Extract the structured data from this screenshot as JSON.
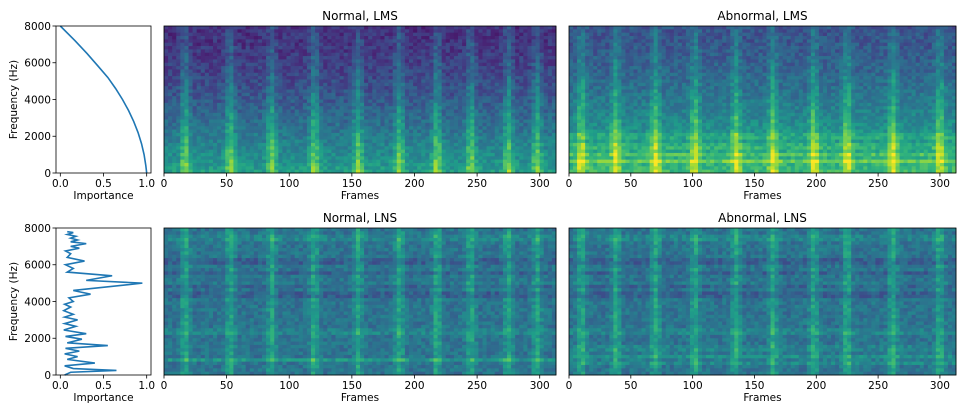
{
  "figure": {
    "colormap": "viridis",
    "line_color": "#1f77b4",
    "viridis_stops": [
      "#440154",
      "#482878",
      "#3e4989",
      "#31688e",
      "#26828e",
      "#1f9e89",
      "#35b779",
      "#6ece58",
      "#b5de2b",
      "#fde725"
    ]
  },
  "chart_data": [
    {
      "id": "importance-lms",
      "type": "line",
      "title": "",
      "xlabel": "Importance",
      "ylabel": "Frequency (Hz)",
      "xlim": [
        -0.05,
        1.05
      ],
      "ylim": [
        0,
        8000
      ],
      "xticks": [
        0.0,
        0.5,
        1.0
      ],
      "xtick_labels": [
        "0.0",
        "0.5",
        "1.0"
      ],
      "yticks": [
        0,
        2000,
        4000,
        6000,
        8000
      ],
      "ytick_labels": [
        "0",
        "2000",
        "4000",
        "6000",
        "8000"
      ],
      "series": [
        {
          "name": "importance",
          "x": [
            1.0,
            0.99,
            0.97,
            0.94,
            0.9,
            0.85,
            0.79,
            0.72,
            0.64,
            0.55,
            0.44,
            0.31,
            0.17,
            0.0
          ],
          "y": [
            0,
            400,
            1000,
            1600,
            2200,
            2800,
            3400,
            4000,
            4600,
            5200,
            5800,
            6500,
            7200,
            8000
          ]
        }
      ]
    },
    {
      "id": "importance-lns",
      "type": "line",
      "title": "",
      "xlabel": "Importance",
      "ylabel": "Frequency (Hz)",
      "xlim": [
        -0.05,
        1.05
      ],
      "ylim": [
        0,
        8000
      ],
      "xticks": [
        0.0,
        0.5,
        1.0
      ],
      "xtick_labels": [
        "0.0",
        "0.5",
        "1.0"
      ],
      "yticks": [
        0,
        2000,
        4000,
        6000,
        8000
      ],
      "ytick_labels": [
        "0",
        "2000",
        "4000",
        "6000",
        "8000"
      ],
      "series": [
        {
          "name": "importance",
          "x": [
            0.05,
            0.12,
            0.65,
            0.15,
            0.05,
            0.4,
            0.08,
            0.2,
            0.05,
            0.22,
            0.06,
            0.55,
            0.08,
            0.25,
            0.06,
            0.3,
            0.04,
            0.18,
            0.05,
            0.2,
            0.05,
            0.15,
            0.04,
            0.12,
            0.05,
            0.15,
            0.1,
            0.35,
            0.15,
            0.95,
            0.3,
            0.6,
            0.08,
            0.15,
            0.06,
            0.28,
            0.08,
            0.12,
            0.06,
            0.22,
            0.12,
            0.3,
            0.12,
            0.2,
            0.12,
            0.18,
            0.08,
            0.15,
            0.08
          ],
          "y": [
            0,
            150,
            250,
            350,
            500,
            650,
            850,
            1000,
            1150,
            1300,
            1450,
            1600,
            1750,
            1950,
            2100,
            2250,
            2450,
            2650,
            2800,
            3000,
            3150,
            3300,
            3500,
            3700,
            3850,
            4000,
            4200,
            4400,
            4600,
            5000,
            5150,
            5400,
            5600,
            5800,
            6000,
            6200,
            6400,
            6600,
            6750,
            6900,
            7000,
            7150,
            7250,
            7350,
            7450,
            7550,
            7650,
            7750,
            7800
          ]
        }
      ]
    },
    {
      "id": "spec-normal-lms",
      "type": "heatmap",
      "title": "Normal, LMS",
      "xlabel": "Frames",
      "ylabel": "",
      "xlim": [
        0,
        313
      ],
      "ylim": [
        0,
        8000
      ],
      "xticks": [
        0,
        50,
        100,
        150,
        200,
        250,
        300
      ],
      "xtick_labels": [
        "0",
        "50",
        "100",
        "150",
        "200",
        "250",
        "300"
      ],
      "pulse_frames": [
        17,
        53,
        86,
        120,
        155,
        188,
        218,
        245,
        275,
        298
      ],
      "band_hz": []
    },
    {
      "id": "spec-abnormal-lms",
      "type": "heatmap",
      "title": "Abnormal, LMS",
      "xlabel": "Frames",
      "ylabel": "",
      "xlim": [
        0,
        313
      ],
      "ylim": [
        0,
        8000
      ],
      "xticks": [
        0,
        50,
        100,
        150,
        200,
        250,
        300
      ],
      "xtick_labels": [
        "0",
        "50",
        "100",
        "150",
        "200",
        "250",
        "300"
      ],
      "pulse_frames": [
        10,
        38,
        70,
        102,
        135,
        165,
        198,
        225,
        262,
        300
      ],
      "band_hz": [
        650,
        1050,
        1450,
        2000
      ]
    },
    {
      "id": "spec-normal-lns",
      "type": "heatmap",
      "title": "Normal, LNS",
      "xlabel": "Frames",
      "ylabel": "",
      "xlim": [
        0,
        313
      ],
      "ylim": [
        0,
        8000
      ],
      "xticks": [
        0,
        50,
        100,
        150,
        200,
        250,
        300
      ],
      "xtick_labels": [
        "0",
        "50",
        "100",
        "150",
        "200",
        "250",
        "300"
      ],
      "pulse_frames": [
        17,
        53,
        86,
        120,
        155,
        188,
        218,
        245,
        275,
        298
      ],
      "band_hz": [
        800,
        2350,
        4950,
        7450
      ]
    },
    {
      "id": "spec-abnormal-lns",
      "type": "heatmap",
      "title": "Abnormal, LNS",
      "xlabel": "Frames",
      "ylabel": "",
      "xlim": [
        0,
        313
      ],
      "ylim": [
        0,
        8000
      ],
      "xticks": [
        0,
        50,
        100,
        150,
        200,
        250,
        300
      ],
      "xtick_labels": [
        "0",
        "50",
        "100",
        "150",
        "200",
        "250",
        "300"
      ],
      "pulse_frames": [
        10,
        38,
        70,
        102,
        135,
        165,
        198,
        225,
        262,
        300
      ],
      "band_hz": [
        700,
        1050,
        1450,
        2350,
        4950,
        7450
      ]
    }
  ]
}
